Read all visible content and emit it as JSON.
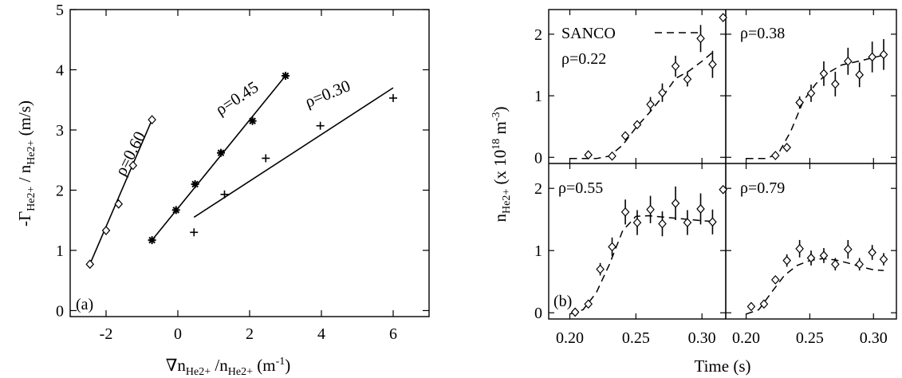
{
  "chart_data": [
    {
      "type": "scatter",
      "panel_label": "(a)",
      "xlabel": "∇n_{He2+} /n_{He2+} (m^{-1})",
      "ylabel": "-Γ_{He2+} / n_{He2+} (m/s)",
      "xlim": [
        -3,
        7
      ],
      "ylim": [
        -0.1,
        5
      ],
      "xticks": [
        -2,
        0,
        2,
        4,
        6
      ],
      "yticks": [
        0,
        1,
        2,
        3,
        4,
        5
      ],
      "xtick_labels": [
        "-2",
        "0",
        "2",
        "4",
        "6"
      ],
      "ytick_labels": [
        "0",
        "1",
        "2",
        "3",
        "4",
        "5"
      ],
      "series": [
        {
          "name": "ρ=0.60",
          "marker": "diamond",
          "points": [
            [
              -2.45,
              0.77
            ],
            [
              -2.0,
              1.33
            ],
            [
              -1.65,
              1.77
            ],
            [
              -1.25,
              2.41
            ],
            [
              -0.72,
              3.17
            ]
          ],
          "fit": [
            [
              -2.45,
              0.77
            ],
            [
              -0.72,
              3.17
            ]
          ]
        },
        {
          "name": "ρ=0.45",
          "marker": "asterisk",
          "points": [
            [
              -0.72,
              1.17
            ],
            [
              -0.05,
              1.67
            ],
            [
              0.48,
              2.1
            ],
            [
              1.2,
              2.62
            ],
            [
              2.08,
              3.15
            ],
            [
              3.0,
              3.9
            ]
          ],
          "fit": [
            [
              -0.72,
              1.17
            ],
            [
              3.0,
              3.9
            ]
          ]
        },
        {
          "name": "ρ=0.30",
          "marker": "plus",
          "points": [
            [
              0.45,
              1.3
            ],
            [
              1.3,
              1.93
            ],
            [
              2.45,
              2.53
            ],
            [
              3.97,
              3.07
            ],
            [
              6.0,
              3.53
            ]
          ],
          "fit": [
            [
              0.45,
              1.55
            ],
            [
              6.0,
              3.7
            ]
          ]
        }
      ]
    },
    {
      "type": "line",
      "panel_label": "(b)",
      "xlabel": "Time (s)",
      "ylabel": "n_{He2+} (x 10^{18} m^{-3})",
      "xlim": [
        0.184,
        0.318
      ],
      "ylim": [
        -0.1,
        2.4
      ],
      "xticks": [
        0.2,
        0.25,
        0.3
      ],
      "xtick_labels": [
        "0.20",
        "0.25",
        "0.30"
      ],
      "yticks": [
        0,
        1,
        2
      ],
      "ytick_labels": [
        "0",
        "1",
        "2"
      ],
      "legend": {
        "label": "SANCO",
        "style": "dashed",
        "placement": "top-left"
      },
      "panels": [
        {
          "rho": "ρ=0.22",
          "data": [
            [
              0.214,
              0.04
            ],
            [
              0.232,
              0.02
            ],
            [
              0.242,
              0.35
            ],
            [
              0.251,
              0.53
            ],
            [
              0.261,
              0.86
            ],
            [
              0.27,
              1.05
            ],
            [
              0.28,
              1.48
            ],
            [
              0.289,
              1.27
            ],
            [
              0.299,
              1.93
            ],
            [
              0.308,
              1.51
            ],
            [
              0.316,
              2.27
            ]
          ],
          "err": [
            0.02,
            0.02,
            0.05,
            0.07,
            0.12,
            0.15,
            0.17,
            0.12,
            0.22,
            0.22,
            0.05
          ],
          "model": [
            [
              0.2,
              -0.02
            ],
            [
              0.22,
              -0.02
            ],
            [
              0.23,
              0.02
            ],
            [
              0.24,
              0.2
            ],
            [
              0.25,
              0.48
            ],
            [
              0.26,
              0.72
            ],
            [
              0.27,
              0.98
            ],
            [
              0.28,
              1.28
            ],
            [
              0.29,
              1.4
            ],
            [
              0.3,
              1.56
            ],
            [
              0.31,
              1.74
            ]
          ]
        },
        {
          "rho": "ρ=0.38",
          "data": [
            [
              0.223,
              0.03
            ],
            [
              0.232,
              0.16
            ],
            [
              0.242,
              0.89
            ],
            [
              0.251,
              1.04
            ],
            [
              0.261,
              1.36
            ],
            [
              0.27,
              1.19
            ],
            [
              0.28,
              1.56
            ],
            [
              0.289,
              1.34
            ],
            [
              0.299,
              1.63
            ],
            [
              0.308,
              1.67
            ]
          ],
          "err": [
            0.02,
            0.03,
            0.1,
            0.14,
            0.2,
            0.2,
            0.22,
            0.2,
            0.25,
            0.25
          ],
          "model": [
            [
              0.2,
              -0.02
            ],
            [
              0.215,
              -0.02
            ],
            [
              0.225,
              0.05
            ],
            [
              0.235,
              0.42
            ],
            [
              0.245,
              0.92
            ],
            [
              0.255,
              1.2
            ],
            [
              0.265,
              1.38
            ],
            [
              0.275,
              1.5
            ],
            [
              0.29,
              1.57
            ],
            [
              0.3,
              1.62
            ],
            [
              0.308,
              1.66
            ]
          ]
        },
        {
          "rho": "ρ=0.55",
          "data": [
            [
              0.204,
              0.01
            ],
            [
              0.214,
              0.14
            ],
            [
              0.223,
              0.7
            ],
            [
              0.232,
              1.06
            ],
            [
              0.242,
              1.62
            ],
            [
              0.251,
              1.45
            ],
            [
              0.261,
              1.66
            ],
            [
              0.27,
              1.43
            ],
            [
              0.28,
              1.76
            ],
            [
              0.289,
              1.45
            ],
            [
              0.299,
              1.67
            ],
            [
              0.308,
              1.46
            ],
            [
              0.316,
              1.98
            ]
          ],
          "err": [
            0.02,
            0.04,
            0.1,
            0.15,
            0.2,
            0.2,
            0.22,
            0.2,
            0.27,
            0.2,
            0.25,
            0.2,
            0.05
          ],
          "model": [
            [
              0.2,
              -0.02
            ],
            [
              0.21,
              0.05
            ],
            [
              0.22,
              0.32
            ],
            [
              0.23,
              0.78
            ],
            [
              0.24,
              1.32
            ],
            [
              0.25,
              1.55
            ],
            [
              0.26,
              1.56
            ],
            [
              0.27,
              1.54
            ],
            [
              0.28,
              1.52
            ],
            [
              0.29,
              1.5
            ],
            [
              0.3,
              1.48
            ],
            [
              0.308,
              1.47
            ]
          ]
        },
        {
          "rho": "ρ=0.79",
          "data": [
            [
              0.204,
              0.1
            ],
            [
              0.214,
              0.14
            ],
            [
              0.223,
              0.53
            ],
            [
              0.232,
              0.84
            ],
            [
              0.242,
              1.03
            ],
            [
              0.251,
              0.88
            ],
            [
              0.261,
              0.92
            ],
            [
              0.27,
              0.78
            ],
            [
              0.28,
              1.02
            ],
            [
              0.289,
              0.78
            ],
            [
              0.299,
              0.97
            ],
            [
              0.308,
              0.86
            ]
          ],
          "err": [
            0.02,
            0.03,
            0.05,
            0.1,
            0.14,
            0.12,
            0.12,
            0.1,
            0.15,
            0.1,
            0.12,
            0.1
          ],
          "model": [
            [
              0.2,
              -0.02
            ],
            [
              0.21,
              0.05
            ],
            [
              0.22,
              0.33
            ],
            [
              0.23,
              0.6
            ],
            [
              0.24,
              0.76
            ],
            [
              0.25,
              0.84
            ],
            [
              0.26,
              0.87
            ],
            [
              0.27,
              0.85
            ],
            [
              0.28,
              0.8
            ],
            [
              0.29,
              0.74
            ],
            [
              0.3,
              0.69
            ],
            [
              0.308,
              0.68
            ]
          ]
        }
      ]
    }
  ]
}
